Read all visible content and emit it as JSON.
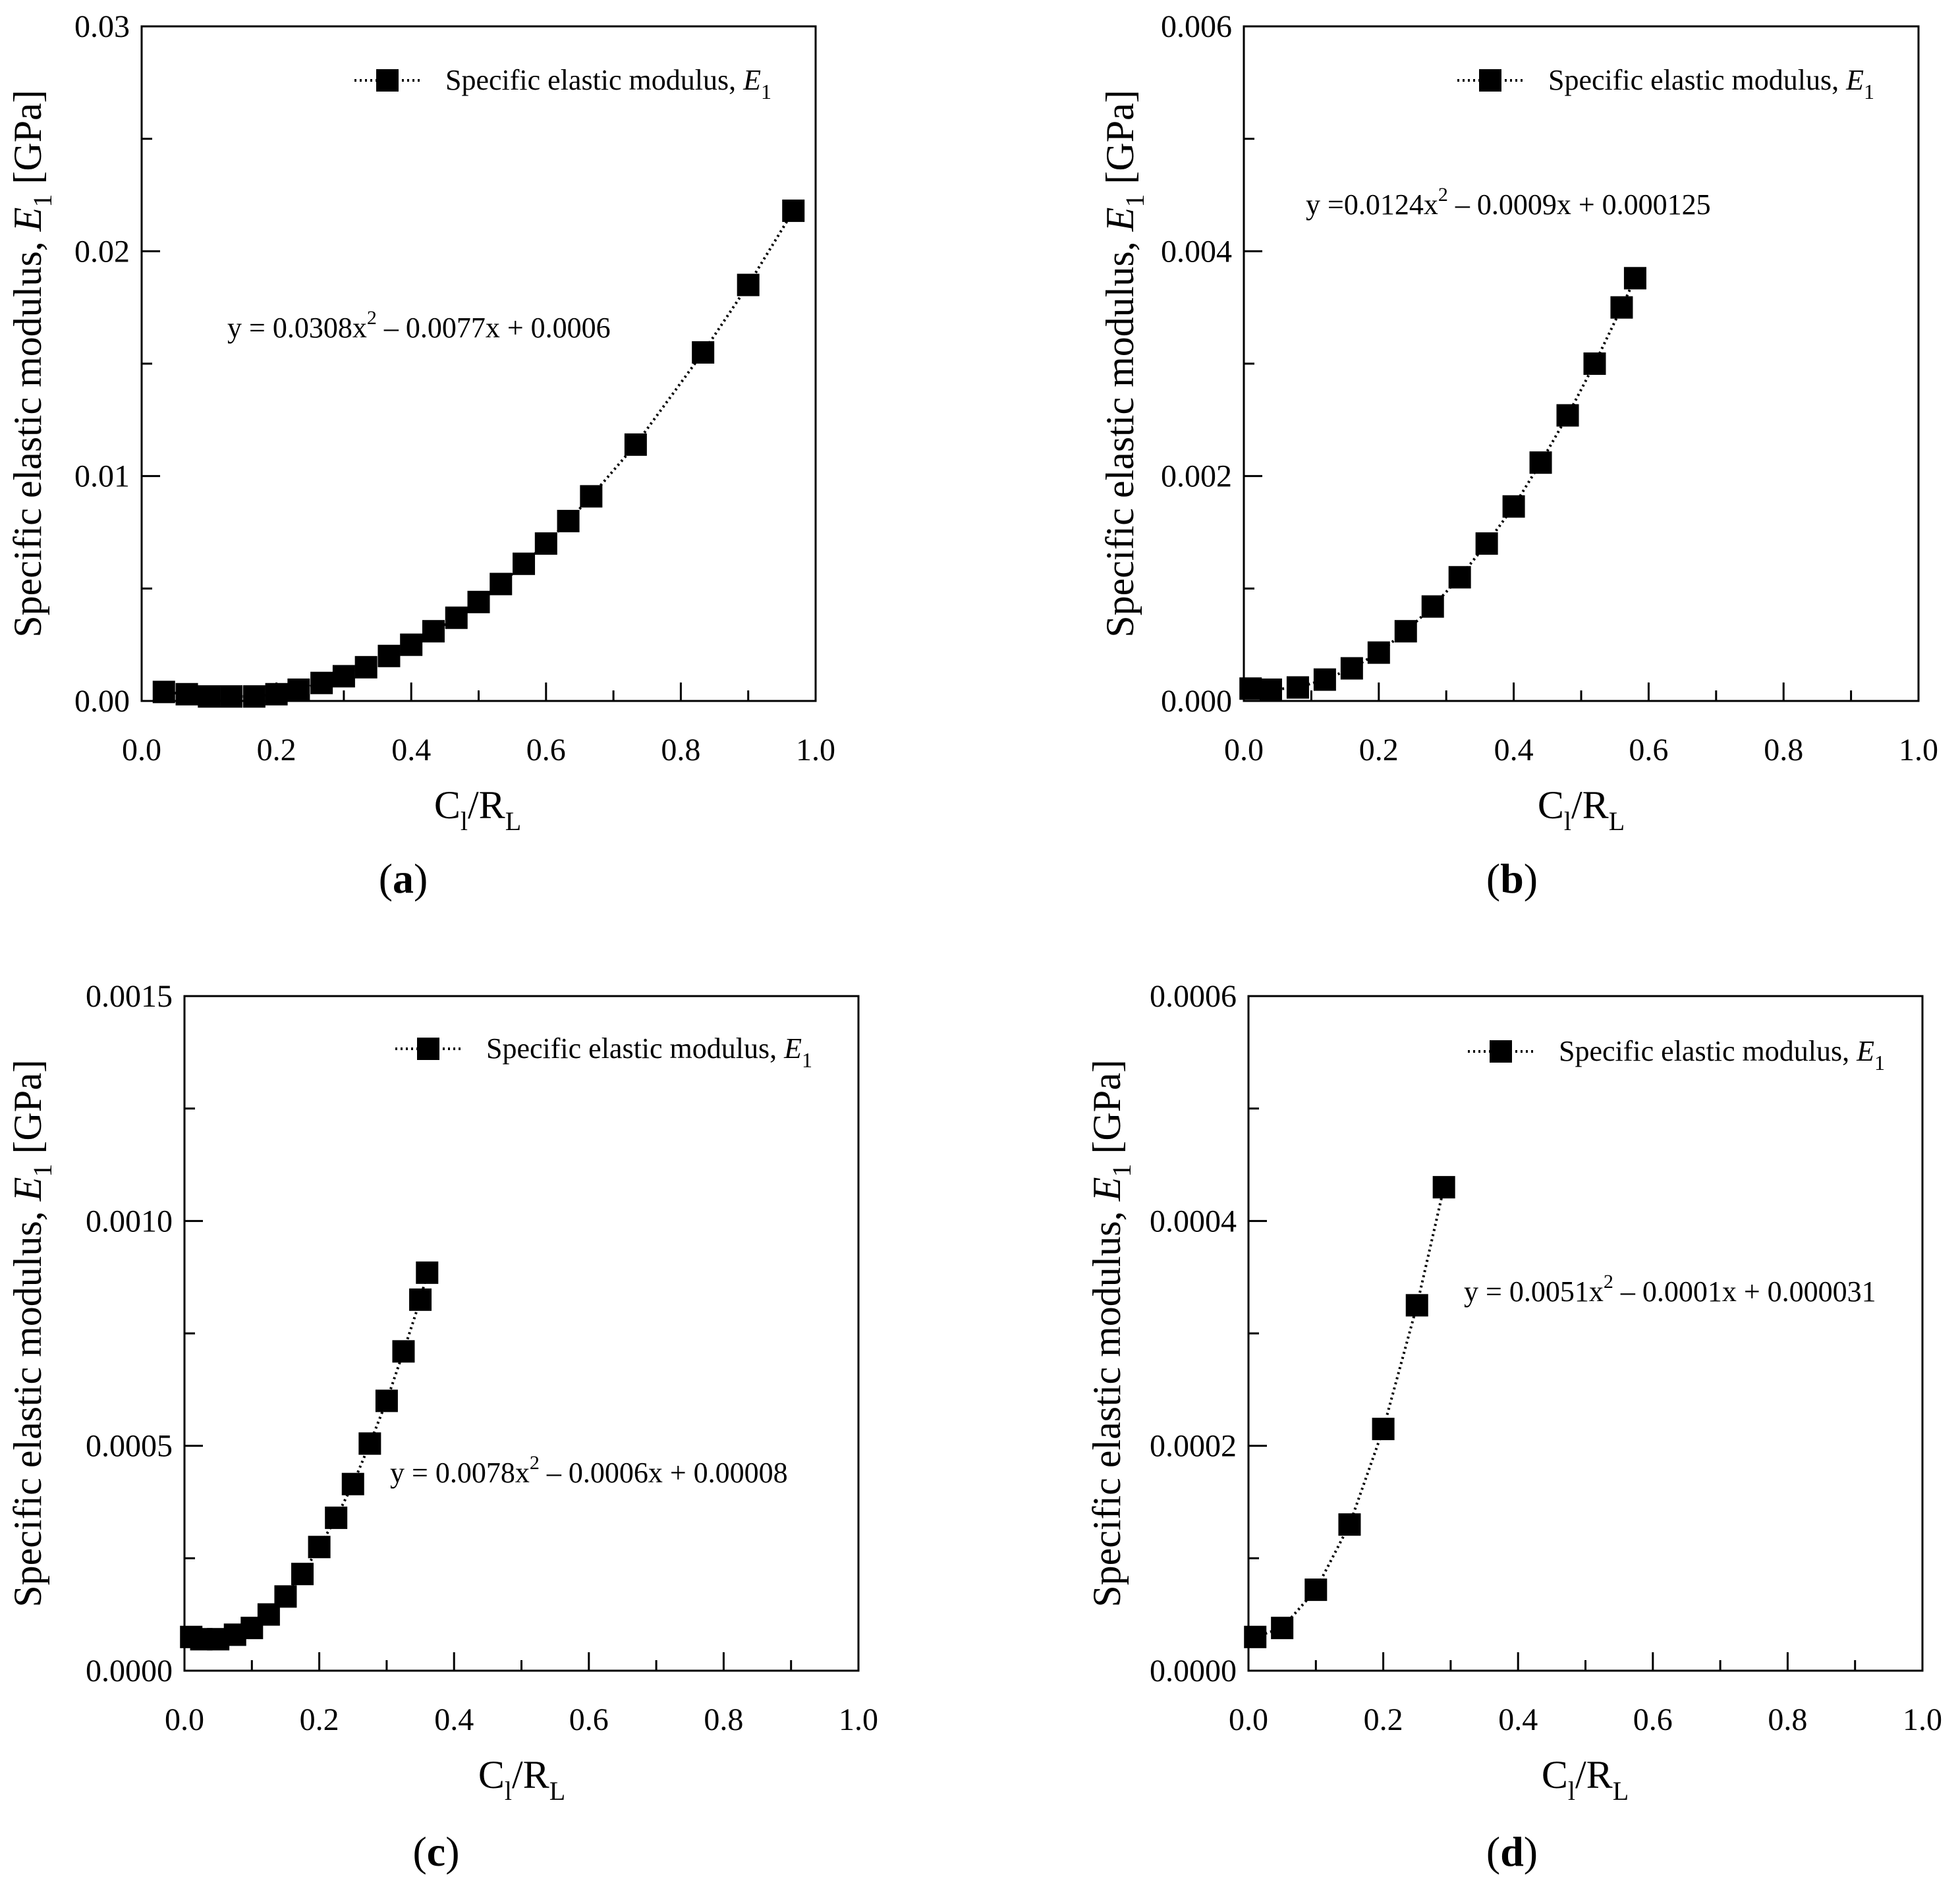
{
  "chart_data": [
    {
      "panel": "a",
      "type": "scatter",
      "caption": "(a)",
      "caption_letter": "a",
      "legend": "Specific elastic modulus, E1",
      "legend_label": "Specific elastic modulus, ",
      "legend_var": "E",
      "legend_sub": "1",
      "equation": "y = 0.0308x2 – 0.0077x + 0.0006",
      "eq_pre": "y = 0.0308x",
      "eq_sup": "2",
      "eq_post": " – 0.0077x + 0.0006",
      "xlabel": "Cl/RL",
      "ylabel": "Specific elastic modulus, E1 [GPa]",
      "xlim": [
        0,
        1
      ],
      "ylim": [
        0,
        0.03
      ],
      "xticks": [
        "0.0",
        "0.2",
        "0.4",
        "0.6",
        "0.8",
        "1.0"
      ],
      "yticks": [
        "0.00",
        "0.01",
        "0.02",
        "0.03"
      ],
      "x": [
        0.033,
        0.067,
        0.1,
        0.133,
        0.167,
        0.2,
        0.233,
        0.267,
        0.3,
        0.333,
        0.367,
        0.4,
        0.433,
        0.467,
        0.5,
        0.533,
        0.567,
        0.6,
        0.633,
        0.667,
        0.733,
        0.833,
        0.9,
        0.967
      ],
      "y": [
        0.0004,
        0.0003,
        0.0002,
        0.0002,
        0.0002,
        0.0003,
        0.0005,
        0.0008,
        0.0011,
        0.0015,
        0.002,
        0.0025,
        0.0031,
        0.0037,
        0.0044,
        0.0052,
        0.0061,
        0.007,
        0.008,
        0.0091,
        0.0114,
        0.0155,
        0.0185,
        0.0218
      ]
    },
    {
      "panel": "b",
      "type": "scatter",
      "caption": "(b)",
      "caption_letter": "b",
      "legend": "Specific elastic modulus, E1",
      "legend_label": "Specific elastic modulus, ",
      "legend_var": "E",
      "legend_sub": "1",
      "equation": "y =0.0124x2 – 0.0009x + 0.000125",
      "eq_pre": "y =0.0124x",
      "eq_sup": "2",
      "eq_post": " – 0.0009x + 0.000125",
      "xlabel": "Cl/RL",
      "ylabel": "Specific elastic modulus, E1 [GPa]",
      "xlim": [
        0,
        1
      ],
      "ylim": [
        0,
        0.006
      ],
      "xticks": [
        "0.0",
        "0.2",
        "0.4",
        "0.6",
        "0.8",
        "1.0"
      ],
      "yticks": [
        "0.000",
        "0.002",
        "0.004",
        "0.006"
      ],
      "x": [
        0.01,
        0.04,
        0.08,
        0.12,
        0.16,
        0.2,
        0.24,
        0.28,
        0.32,
        0.36,
        0.4,
        0.44,
        0.48,
        0.52,
        0.56,
        0.58
      ],
      "y": [
        0.00011,
        0.0001,
        0.00012,
        0.00019,
        0.00029,
        0.00043,
        0.00062,
        0.00084,
        0.0011,
        0.0014,
        0.00173,
        0.00212,
        0.00254,
        0.003,
        0.0035,
        0.00376
      ]
    },
    {
      "panel": "c",
      "type": "scatter",
      "caption": "(c)",
      "caption_letter": "c",
      "legend": "Specific elastic modulus, E1",
      "legend_label": "Specific elastic modulus, ",
      "legend_var": "E",
      "legend_sub": "1",
      "equation": "y = 0.0078x2 – 0.0006x + 0.00008",
      "eq_pre": "y = 0.0078x",
      "eq_sup": "2",
      "eq_post": " – 0.0006x + 0.00008",
      "xlabel": "Cl/RL",
      "ylabel": "Specific elastic modulus, E1 [GPa]",
      "xlim": [
        0,
        1
      ],
      "ylim": [
        0,
        0.0015
      ],
      "xticks": [
        "0.0",
        "0.2",
        "0.4",
        "0.6",
        "0.8",
        "1.0"
      ],
      "yticks": [
        "0.0000",
        "0.0005",
        "0.0010",
        "0.0015"
      ],
      "x": [
        0.01,
        0.025,
        0.05,
        0.075,
        0.1,
        0.125,
        0.15,
        0.175,
        0.2,
        0.225,
        0.25,
        0.275,
        0.3,
        0.325,
        0.35,
        0.36
      ],
      "y": [
        7.5e-05,
        7e-05,
        7e-05,
        8e-05,
        9.5e-05,
        0.000125,
        0.000165,
        0.000215,
        0.000275,
        0.00034,
        0.000415,
        0.000505,
        0.0006,
        0.00071,
        0.000825,
        0.000885
      ]
    },
    {
      "panel": "d",
      "type": "scatter",
      "caption": "(d)",
      "caption_letter": "d",
      "legend": "Specific elastic modulus, E1",
      "legend_label": "Specific elastic modulus, ",
      "legend_var": "E",
      "legend_sub": "1",
      "equation": "y = 0.0051x2 – 0.0001x + 0.000031",
      "eq_pre": "y = 0.0051x",
      "eq_sup": "2",
      "eq_post": " – 0.0001x + 0.000031",
      "xlabel": "Cl/RL",
      "ylabel": "Specific elastic modulus, E1 [GPa]",
      "xlim": [
        0,
        1
      ],
      "ylim": [
        0,
        0.0006
      ],
      "xticks": [
        "0.0",
        "0.2",
        "0.4",
        "0.6",
        "0.8",
        "1.0"
      ],
      "yticks": [
        "0.0000",
        "0.0002",
        "0.0004",
        "0.0006"
      ],
      "x": [
        0.01,
        0.05,
        0.1,
        0.15,
        0.2,
        0.25,
        0.29
      ],
      "y": [
        3e-05,
        3.8e-05,
        7.2e-05,
        0.00013,
        0.000215,
        0.000325,
        0.00043
      ]
    }
  ]
}
